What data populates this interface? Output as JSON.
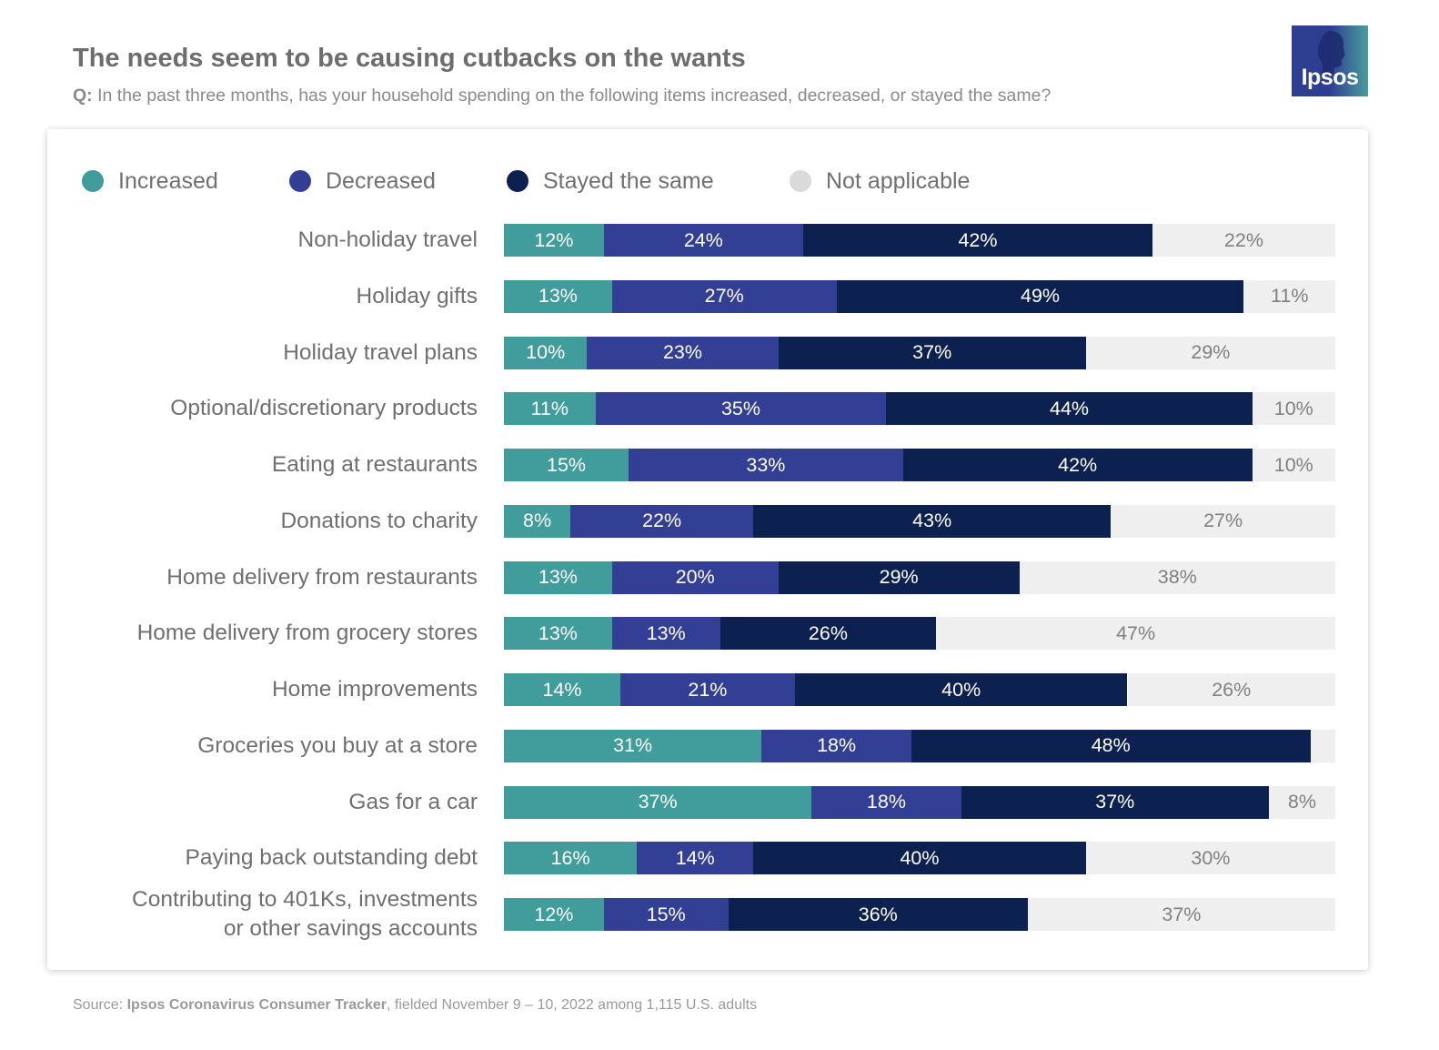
{
  "header": {
    "title": "The needs seem to be causing cutbacks on the wants",
    "question_prefix": "Q:",
    "question": " In the past three months, has your household spending on the following items increased, decreased, or stayed the same?"
  },
  "logo": {
    "text": "Ipsos",
    "icon": "ipsos-head-silhouette-icon"
  },
  "footer": {
    "prefix": "Source: ",
    "source_name": "Ipsos Coronavirus Consumer Tracker",
    "suffix": ", fielded November 9 – 10, 2022 among 1,115 U.S. adults"
  },
  "chart_data": {
    "type": "bar",
    "orientation": "horizontal",
    "stacked": true,
    "value_unit": "%",
    "xlim": [
      0,
      100
    ],
    "legend_position": "top",
    "grid": false,
    "categories": [
      "Non-holiday travel",
      "Holiday gifts",
      "Holiday travel plans",
      "Optional/discretionary products",
      "Eating at restaurants",
      "Donations to charity",
      "Home delivery from restaurants",
      "Home delivery from grocery stores",
      "Home improvements",
      "Groceries you buy at a store",
      "Gas for a car",
      "Paying back outstanding debt",
      "Contributing to 401Ks, investments or other savings accounts"
    ],
    "series": [
      {
        "name": "Increased",
        "color": "#419c9c",
        "label_color": "#ffffff",
        "values": [
          12,
          13,
          10,
          11,
          15,
          8,
          13,
          13,
          14,
          31,
          37,
          16,
          12
        ]
      },
      {
        "name": "Decreased",
        "color": "#323f95",
        "label_color": "#ffffff",
        "values": [
          24,
          27,
          23,
          35,
          33,
          22,
          20,
          13,
          21,
          18,
          18,
          14,
          15
        ]
      },
      {
        "name": "Stayed the same",
        "color": "#0d2150",
        "label_color": "#ffffff",
        "values": [
          42,
          49,
          37,
          44,
          42,
          43,
          29,
          26,
          40,
          48,
          37,
          40,
          36
        ]
      },
      {
        "name": "Not applicable",
        "color": "#efefef",
        "legend_color": "#dadada",
        "label_color": "#808080",
        "values": [
          22,
          11,
          29,
          10,
          10,
          27,
          38,
          47,
          26,
          3,
          8,
          30,
          37
        ],
        "show_labels": [
          true,
          true,
          true,
          true,
          true,
          true,
          true,
          true,
          true,
          false,
          true,
          true,
          true
        ]
      }
    ]
  }
}
